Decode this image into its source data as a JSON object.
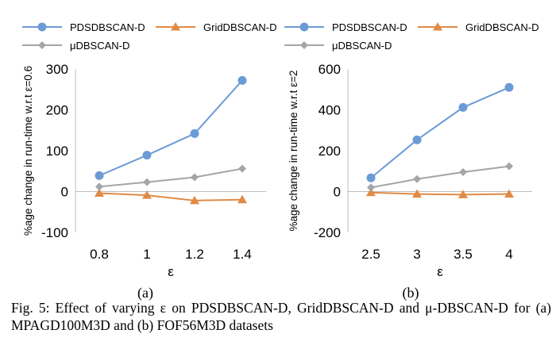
{
  "figure": {
    "caption": "Fig. 5: Effect of varying ε on PDSDBSCAN-D, GridDBSCAN-D and μ-DBSCAN-D for (a) MPAGD100M3D and (b) FOF56M3D datasets",
    "colors": {
      "PDSDBSCAN-D": "#6b9bd6",
      "GridDBSCAN-D": "#e08a45",
      "μDBSCAN-D": "#a5a5a5"
    }
  },
  "chart_data": [
    {
      "type": "line",
      "panel_label": "(a)",
      "xlabel": "ε",
      "ylabel": "%age change in run-time w.r.t ε=0.6",
      "categories": [
        "0.8",
        "1",
        "1.2",
        "1.4"
      ],
      "ylim": [
        -100,
        300
      ],
      "yticks": [
        -100,
        0,
        100,
        200,
        300
      ],
      "grid": false,
      "legend": "top",
      "series": [
        {
          "name": "PDSDBSCAN-D",
          "marker": "circle",
          "color": "#6b9bd6",
          "values": [
            39,
            89,
            142,
            272
          ]
        },
        {
          "name": "GridDBSCAN-D",
          "marker": "triangle",
          "color": "#e08a45",
          "values": [
            -4,
            -9,
            -22,
            -20
          ]
        },
        {
          "name": "μDBSCAN-D",
          "marker": "diamond",
          "color": "#a5a5a5",
          "values": [
            12,
            23,
            35,
            56
          ]
        }
      ]
    },
    {
      "type": "line",
      "panel_label": "(b)",
      "xlabel": "ε",
      "ylabel": "%age change in run-time w.r.t ε=2",
      "categories": [
        "2.5",
        "3",
        "3.5",
        "4"
      ],
      "ylim": [
        -200,
        600
      ],
      "yticks": [
        -200,
        0,
        200,
        400,
        600
      ],
      "grid": false,
      "legend": "top",
      "series": [
        {
          "name": "PDSDBSCAN-D",
          "marker": "circle",
          "color": "#6b9bd6",
          "values": [
            67,
            253,
            412,
            510
          ]
        },
        {
          "name": "GridDBSCAN-D",
          "marker": "triangle",
          "color": "#e08a45",
          "values": [
            -5,
            -12,
            -15,
            -12
          ]
        },
        {
          "name": "μDBSCAN-D",
          "marker": "diamond",
          "color": "#a5a5a5",
          "values": [
            20,
            61,
            95,
            124
          ]
        }
      ]
    }
  ]
}
